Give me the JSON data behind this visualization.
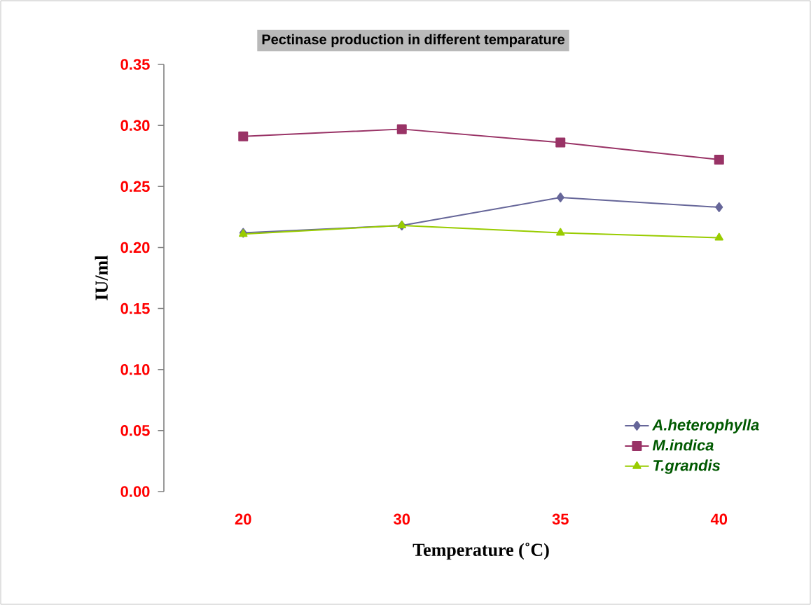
{
  "chart_data": {
    "type": "line",
    "title": "Pectinase production in different temparature",
    "xlabel": "Temperature (˚C)",
    "ylabel": "IU/ml",
    "categories": [
      "20",
      "30",
      "35",
      "40"
    ],
    "series": [
      {
        "name": "A.heterophylla",
        "color": "#666699",
        "marker": "diamond",
        "values": [
          0.212,
          0.218,
          0.241,
          0.233
        ]
      },
      {
        "name": "M.indica",
        "color": "#993366",
        "marker": "square",
        "values": [
          0.291,
          0.297,
          0.286,
          0.272
        ]
      },
      {
        "name": "T.grandis",
        "color": "#99cc00",
        "marker": "triangle",
        "values": [
          0.211,
          0.218,
          0.212,
          0.208
        ]
      }
    ],
    "ylim": [
      0,
      0.35
    ],
    "yticks": [
      {
        "value": 0,
        "label": "0.00"
      },
      0.05,
      {
        "value": 0.1,
        "label": "0.10"
      },
      0.15,
      {
        "value": 0.2,
        "label": "0.20"
      },
      0.25,
      {
        "value": 0.3,
        "label": "0.30"
      },
      0.35
    ],
    "grid": false,
    "legend": "bottom right"
  }
}
